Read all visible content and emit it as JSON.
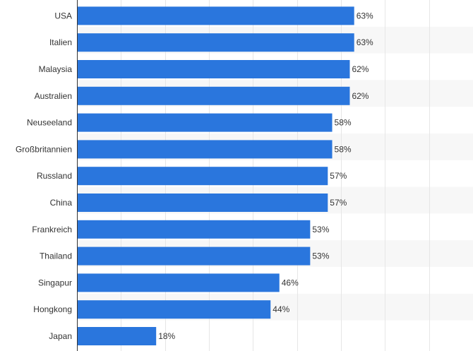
{
  "chart_data": {
    "type": "bar",
    "orientation": "horizontal",
    "categories": [
      "USA",
      "Italien",
      "Malaysia",
      "Australien",
      "Neuseeland",
      "Großbritannien",
      "Russland",
      "China",
      "Frankreich",
      "Thailand",
      "Singapur",
      "Hongkong",
      "Japan"
    ],
    "values": [
      63,
      63,
      62,
      62,
      58,
      58,
      57,
      57,
      53,
      53,
      46,
      44,
      18
    ],
    "value_labels": [
      "63%",
      "63%",
      "62%",
      "62%",
      "58%",
      "58%",
      "57%",
      "57%",
      "53%",
      "53%",
      "46%",
      "44%",
      "18%"
    ],
    "title": "",
    "xlabel": "",
    "ylabel": "",
    "xlim": [
      0,
      90
    ],
    "grid": true,
    "legend": "none",
    "colors": {
      "bar": "#2a76dd",
      "band": "#f7f7f7",
      "grid": "#e6e6e6",
      "axis": "#333333"
    }
  }
}
